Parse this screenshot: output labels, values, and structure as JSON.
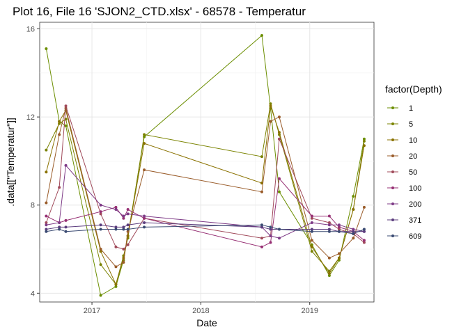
{
  "chart_data": {
    "type": "line",
    "title": "Plot 16, File 16 'SJON2_CTD.xlsx' - 68578  -  Temperatur",
    "xlabel": "Date",
    "ylabel": ".data[[\"Temperatur\"]]",
    "xlim": [
      2016.52,
      2019.59
    ],
    "ylim": [
      3.6,
      16.3
    ],
    "x_ticks": [
      2017,
      2018,
      2019
    ],
    "x_tick_labels": [
      "2017",
      "2018",
      "2019"
    ],
    "y_ticks": [
      4,
      8,
      12,
      16
    ],
    "y_tick_labels": [
      "4",
      "8",
      "12",
      "16"
    ],
    "grid": true,
    "legend_title": "factor(Depth)",
    "legend_position": "right",
    "series": [
      {
        "name": "1",
        "color": "#6b8e00",
        "x": [
          2016.58,
          2016.7,
          2016.76,
          2017.08,
          2017.22,
          2017.29,
          2017.33,
          2017.48,
          2018.56,
          2018.64,
          2018.72,
          2019.02,
          2019.18,
          2019.27,
          2019.4,
          2019.5
        ],
        "y": [
          15.1,
          11.8,
          11.6,
          3.9,
          4.3,
          5.5,
          6.6,
          11.1,
          15.7,
          12.4,
          8.6,
          6.2,
          4.8,
          5.5,
          8.4,
          11.0
        ]
      },
      {
        "name": "5",
        "color": "#7a8300",
        "x": [
          2016.58,
          2016.7,
          2016.76,
          2017.08,
          2017.22,
          2017.29,
          2017.33,
          2017.48,
          2018.56,
          2018.64,
          2018.72,
          2019.02,
          2019.18,
          2019.27,
          2019.4,
          2019.5
        ],
        "y": [
          10.5,
          11.7,
          11.9,
          5.3,
          4.4,
          5.7,
          6.5,
          11.2,
          10.2,
          12.6,
          11.2,
          5.9,
          5.0,
          5.6,
          7.8,
          10.9
        ]
      },
      {
        "name": "10",
        "color": "#8a7200",
        "x": [
          2016.58,
          2016.7,
          2016.76,
          2017.08,
          2017.22,
          2017.29,
          2017.33,
          2017.48,
          2018.56,
          2018.64,
          2018.72,
          2019.02,
          2019.18,
          2019.27,
          2019.4,
          2019.5
        ],
        "y": [
          9.5,
          11.8,
          12.3,
          5.9,
          4.4,
          5.6,
          6.6,
          10.8,
          9.0,
          12.5,
          11.3,
          6.1,
          4.9,
          5.6,
          7.8,
          10.7
        ]
      },
      {
        "name": "20",
        "color": "#9a5c2a",
        "x": [
          2016.58,
          2016.7,
          2016.76,
          2017.08,
          2017.22,
          2017.29,
          2017.33,
          2017.48,
          2018.56,
          2018.64,
          2018.72,
          2019.02,
          2019.18,
          2019.27,
          2019.4,
          2019.5
        ],
        "y": [
          8.1,
          11.2,
          12.4,
          6.0,
          5.2,
          5.4,
          6.8,
          9.6,
          8.6,
          11.8,
          12.0,
          6.4,
          5.6,
          5.8,
          6.5,
          7.9
        ]
      },
      {
        "name": "50",
        "color": "#a0495a",
        "x": [
          2016.58,
          2016.7,
          2016.76,
          2017.08,
          2017.22,
          2017.29,
          2017.33,
          2017.48,
          2018.56,
          2018.64,
          2018.72,
          2019.02,
          2019.18,
          2019.27,
          2019.4,
          2019.5
        ],
        "y": [
          7.2,
          8.8,
          12.5,
          7.6,
          6.1,
          6.0,
          6.2,
          7.4,
          6.5,
          6.6,
          11.0,
          7.4,
          7.2,
          6.9,
          6.7,
          6.3
        ]
      },
      {
        "name": "100",
        "color": "#962f73",
        "x": [
          2016.58,
          2016.7,
          2016.76,
          2017.08,
          2017.22,
          2017.29,
          2017.33,
          2017.48,
          2018.56,
          2018.64,
          2018.72,
          2019.02,
          2019.18,
          2019.27,
          2019.4,
          2019.5
        ],
        "y": [
          7.5,
          7.2,
          7.3,
          7.7,
          7.9,
          7.4,
          7.8,
          7.4,
          6.1,
          6.3,
          9.2,
          7.5,
          7.5,
          7.0,
          6.8,
          6.4
        ]
      },
      {
        "name": "200",
        "color": "#7d3a86",
        "x": [
          2016.58,
          2016.7,
          2016.76,
          2017.08,
          2017.22,
          2017.29,
          2017.33,
          2017.48,
          2018.56,
          2018.64,
          2018.72,
          2019.02,
          2019.18,
          2019.27,
          2019.4,
          2019.5
        ],
        "y": [
          7.1,
          7.2,
          9.8,
          8.0,
          7.8,
          7.5,
          7.6,
          7.5,
          7.0,
          6.6,
          6.5,
          7.2,
          7.1,
          7.1,
          6.9,
          6.8
        ]
      },
      {
        "name": "371",
        "color": "#5c3d7e",
        "x": [
          2016.58,
          2016.7,
          2016.76,
          2017.08,
          2017.22,
          2017.29,
          2017.33,
          2017.48,
          2018.56,
          2018.64,
          2018.72,
          2019.02,
          2019.18,
          2019.27,
          2019.4,
          2019.5
        ],
        "y": [
          6.9,
          7.0,
          7.0,
          7.1,
          7.0,
          7.0,
          7.1,
          7.2,
          7.0,
          6.9,
          6.9,
          6.9,
          6.9,
          6.8,
          6.8,
          6.8
        ]
      },
      {
        "name": "609",
        "color": "#3a4a72",
        "x": [
          2016.58,
          2016.7,
          2016.76,
          2017.08,
          2017.22,
          2017.29,
          2017.33,
          2017.48,
          2018.56,
          2018.64,
          2018.72,
          2019.02,
          2019.18,
          2019.27,
          2019.4,
          2019.5
        ],
        "y": [
          6.8,
          6.9,
          6.8,
          6.9,
          6.9,
          6.9,
          6.9,
          7.0,
          7.1,
          7.0,
          6.9,
          6.8,
          6.8,
          6.8,
          6.7,
          6.9
        ]
      }
    ]
  }
}
